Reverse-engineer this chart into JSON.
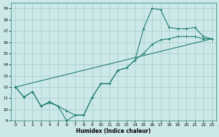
{
  "xlabel": "Humidex (Indice chaleur)",
  "xlim": [
    -0.5,
    23.5
  ],
  "ylim": [
    9,
    19.5
  ],
  "yticks": [
    9,
    10,
    11,
    12,
    13,
    14,
    15,
    16,
    17,
    18,
    19
  ],
  "xticks": [
    0,
    1,
    2,
    3,
    4,
    5,
    6,
    7,
    8,
    9,
    10,
    11,
    12,
    13,
    14,
    15,
    16,
    17,
    18,
    19,
    20,
    21,
    22,
    23
  ],
  "bg_color": "#cce8e8",
  "grid_color": "#aacfcf",
  "line_color": "#1a7a6e",
  "line1_x": [
    0,
    1,
    2,
    3,
    4,
    5,
    6,
    7,
    8,
    9,
    10,
    11,
    12,
    13,
    14,
    15,
    16,
    17,
    18,
    19,
    20,
    21,
    22,
    23
  ],
  "line1_y": [
    12.0,
    11.1,
    11.6,
    10.3,
    10.6,
    10.3,
    9.0,
    9.5,
    9.5,
    11.1,
    12.3,
    12.3,
    13.5,
    13.7,
    14.4,
    15.0,
    15.8,
    16.2,
    16.3,
    16.5,
    16.5,
    16.5,
    16.3,
    16.3
  ],
  "line2_x": [
    0,
    1,
    2,
    3,
    4,
    5,
    6,
    7,
    8,
    9,
    10,
    11,
    12,
    13,
    14,
    15,
    16,
    17,
    18,
    19,
    20,
    21,
    22,
    23
  ],
  "line2_y": [
    12.0,
    11.1,
    11.6,
    10.3,
    10.7,
    10.3,
    9.9,
    9.5,
    9.5,
    11.1,
    12.3,
    12.3,
    13.5,
    13.7,
    14.4,
    17.2,
    19.0,
    18.9,
    17.3,
    17.2,
    17.2,
    17.3,
    16.5,
    16.3
  ],
  "line3_x": [
    0,
    23
  ],
  "line3_y": [
    12.0,
    16.3
  ]
}
